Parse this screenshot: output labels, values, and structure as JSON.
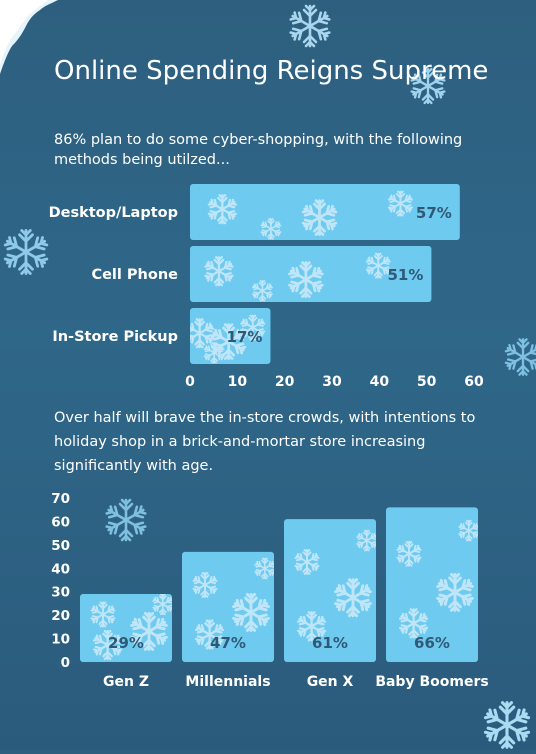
{
  "title": "Online Spending Reigns Supreme",
  "intro": "86% plan to do some cyber-shopping, with the following methods being utilzed...",
  "second_text": "Over half will brave the in-store crowds, with intentions to holiday shop in a brick-and-mortar store increasing significantly with age.",
  "colors": {
    "background": "#2f6789",
    "bar": "#6fcaf0",
    "value_text": "#2f5a77",
    "text": "#ffffff"
  },
  "icons": [
    "snowflake-icon",
    "icicle-decoration"
  ],
  "chart_data": [
    {
      "type": "bar",
      "orientation": "horizontal",
      "categories": [
        "Desktop/Laptop",
        "Cell Phone",
        "In-Store Pickup"
      ],
      "values": [
        57,
        51,
        17
      ],
      "data_labels": [
        "57%",
        "51%",
        "17%"
      ],
      "xlim": [
        0,
        60
      ],
      "ticks": [
        0,
        10,
        20,
        30,
        40,
        50,
        60
      ],
      "grid": false
    },
    {
      "type": "bar",
      "orientation": "vertical",
      "categories": [
        "Gen Z",
        "Millennials",
        "Gen X",
        "Baby Boomers"
      ],
      "values": [
        29,
        47,
        61,
        66
      ],
      "data_labels": [
        "29%",
        "47%",
        "61%",
        "66%"
      ],
      "ylim": [
        0,
        70
      ],
      "ticks": [
        0,
        10,
        20,
        30,
        40,
        50,
        60,
        70
      ],
      "grid": false
    }
  ]
}
